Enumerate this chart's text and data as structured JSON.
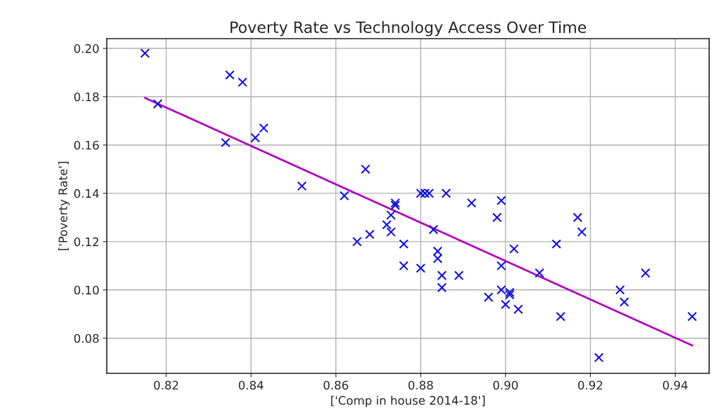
{
  "chart_data": {
    "type": "scatter",
    "title": "Poverty Rate vs Technology Access Over Time",
    "xlabel": "['Comp in house 2014-18']",
    "ylabel": "['Poverty Rate']",
    "xlim": [
      0.806,
      0.948
    ],
    "ylim": [
      0.0655,
      0.204
    ],
    "xticks": [
      0.82,
      0.84,
      0.86,
      0.88,
      {
        "value": 0.9,
        "label": "0.90"
      },
      0.92,
      0.94
    ],
    "yticks": [
      0.08,
      {
        "value": 0.1,
        "label": "0.10"
      },
      0.12,
      0.14,
      0.16,
      0.18,
      {
        "value": 0.2,
        "label": "0.20"
      }
    ],
    "grid": true,
    "series": [
      {
        "marker": "cross",
        "color": "#1010e0",
        "x": [
          0.815,
          0.818,
          0.835,
          0.838,
          0.834,
          0.841,
          0.843,
          0.852,
          0.862,
          0.867,
          0.865,
          0.868,
          0.872,
          0.873,
          0.873,
          0.874,
          0.874,
          0.876,
          0.876,
          0.88,
          0.881,
          0.882,
          0.886,
          0.88,
          0.883,
          0.884,
          0.884,
          0.885,
          0.885,
          0.889,
          0.892,
          0.896,
          0.898,
          0.899,
          0.899,
          0.899,
          0.9,
          0.901,
          0.901,
          0.902,
          0.903,
          0.908,
          0.912,
          0.913,
          0.917,
          0.918,
          0.922,
          0.927,
          0.928,
          0.933,
          0.944
        ],
        "values": [
          0.198,
          0.177,
          0.189,
          0.186,
          0.161,
          0.163,
          0.167,
          0.143,
          0.139,
          0.15,
          0.12,
          0.123,
          0.127,
          0.131,
          0.124,
          0.136,
          0.135,
          0.119,
          0.11,
          0.14,
          0.14,
          0.14,
          0.14,
          0.109,
          0.125,
          0.116,
          0.113,
          0.106,
          0.101,
          0.106,
          0.136,
          0.097,
          0.13,
          0.137,
          0.11,
          0.1,
          0.094,
          0.098,
          0.099,
          0.117,
          0.092,
          0.107,
          0.119,
          0.089,
          0.13,
          0.124,
          0.072,
          0.1,
          0.095,
          0.107,
          0.089
        ]
      },
      {
        "type": "line",
        "color": "#b000c0",
        "line_style": "solid",
        "x": [
          0.815,
          0.944
        ],
        "values": [
          0.1795,
          0.077
        ]
      }
    ]
  }
}
